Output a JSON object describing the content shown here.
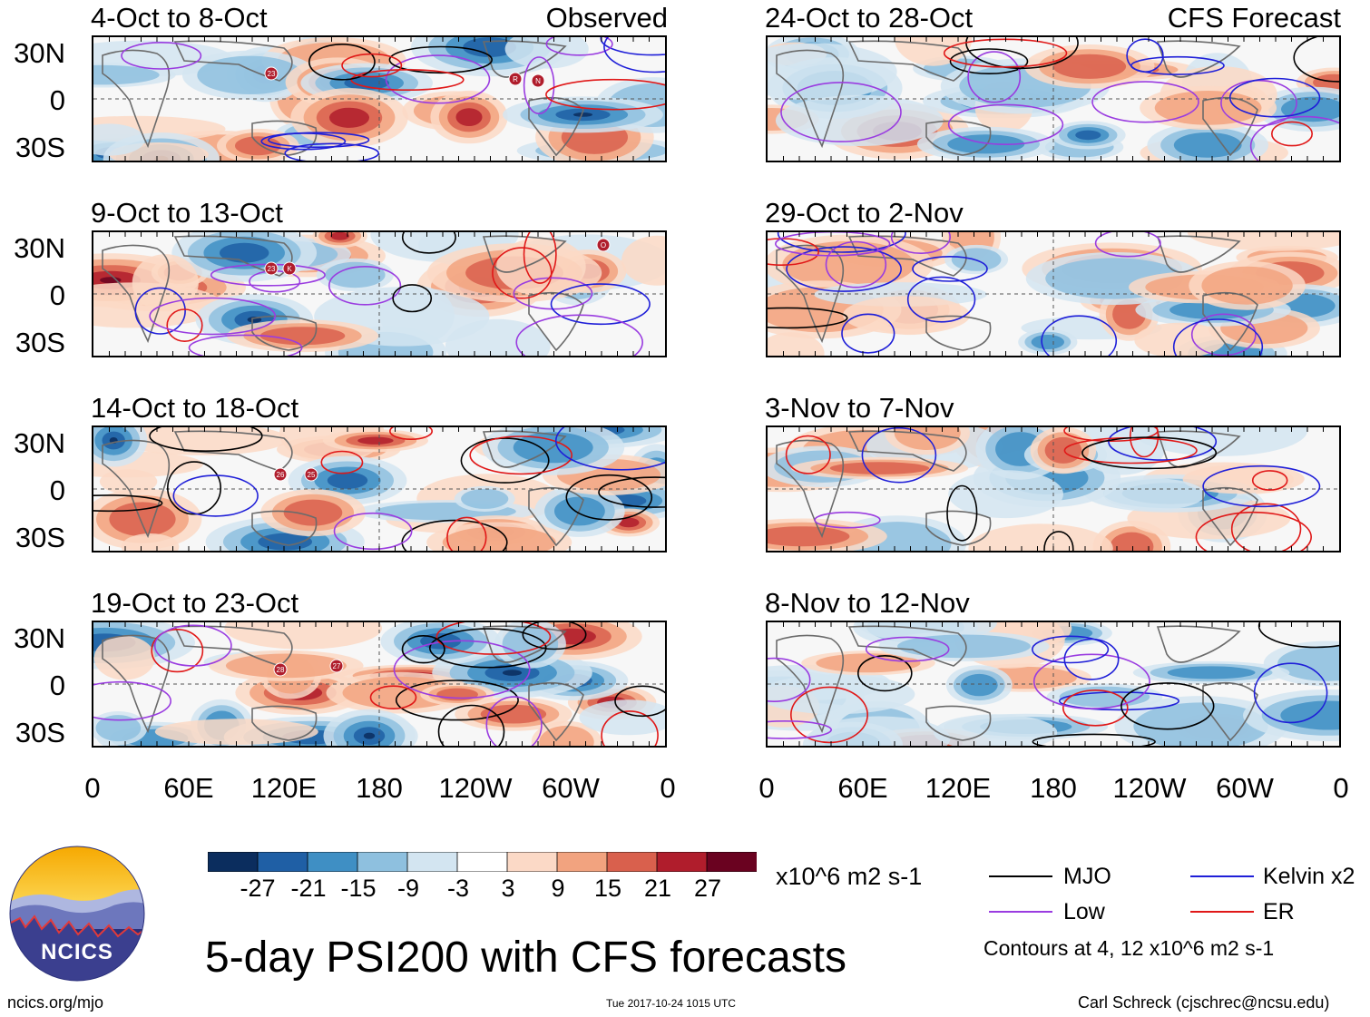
{
  "panels_left": [
    {
      "title": "4-Oct to 8-Oct",
      "subtitle": "Observed"
    },
    {
      "title": "9-Oct to 13-Oct",
      "subtitle": ""
    },
    {
      "title": "14-Oct to 18-Oct",
      "subtitle": ""
    },
    {
      "title": "19-Oct to 23-Oct",
      "subtitle": ""
    }
  ],
  "panels_right": [
    {
      "title": "24-Oct to 28-Oct",
      "subtitle": "CFS Forecast"
    },
    {
      "title": "29-Oct to 2-Nov",
      "subtitle": ""
    },
    {
      "title": "3-Nov to 7-Nov",
      "subtitle": ""
    },
    {
      "title": "8-Nov to 12-Nov",
      "subtitle": ""
    }
  ],
  "lat_labels": [
    "30N",
    "0",
    "30S"
  ],
  "lon_labels": [
    "0",
    "60E",
    "120E",
    "180",
    "120W",
    "60W",
    "0"
  ],
  "colorbar": {
    "colors": [
      "#0b2d5e",
      "#1f5fa5",
      "#3f8fc4",
      "#8ec0df",
      "#d3e5f1",
      "#ffffff",
      "#fbd9c6",
      "#f2a37f",
      "#d9604d",
      "#b01d2c",
      "#6a0220"
    ],
    "labels": [
      "-27",
      "-21",
      "-15",
      "-9",
      "-3",
      "3",
      "9",
      "15",
      "21",
      "27"
    ],
    "units": "x10^6 m2 s-1"
  },
  "legend": {
    "items": [
      {
        "label": "MJO",
        "color": "#000000"
      },
      {
        "label": "Kelvin x2",
        "color": "#1f1fd8"
      },
      {
        "label": "Low",
        "color": "#9a3ce0"
      },
      {
        "label": "ER",
        "color": "#e01818"
      }
    ],
    "contours_note": "Contours at 4, 12 x10^6 m2 s-1"
  },
  "main_title": "5-day PSI200 with CFS forecasts",
  "logo_text": "NCICS",
  "footer": {
    "left": "ncics.org/mjo",
    "center": "Tue 2017-10-24 1015 UTC",
    "right": "Carl Schreck (cjschrec@ncsu.edu)"
  },
  "storm_markers": [
    {
      "panel": 0,
      "labels": [
        "23",
        "R",
        "N"
      ]
    },
    {
      "panel": 1,
      "labels": [
        "23",
        "K",
        "O"
      ]
    },
    {
      "panel": 2,
      "labels": [
        "26",
        "25"
      ]
    },
    {
      "panel": 3,
      "labels": [
        "28",
        "27"
      ]
    }
  ]
}
